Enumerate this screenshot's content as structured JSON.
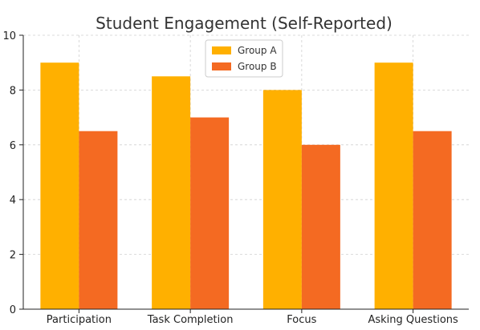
{
  "chart_data": {
    "type": "bar",
    "title": "Student Engagement (Self-Reported)",
    "xlabel": "",
    "ylabel": "",
    "categories": [
      "Participation",
      "Task Completion",
      "Focus",
      "Asking Questions"
    ],
    "series": [
      {
        "name": "Group A",
        "values": [
          9,
          8.5,
          8,
          9
        ],
        "color": "#FFB000"
      },
      {
        "name": "Group B",
        "values": [
          6.5,
          7,
          6,
          6.5
        ],
        "color": "#F46A22"
      }
    ],
    "ylim": [
      0,
      10
    ],
    "yticks": [
      0,
      2,
      4,
      6,
      8,
      10
    ],
    "grid": true,
    "legend_position": "top-center"
  }
}
